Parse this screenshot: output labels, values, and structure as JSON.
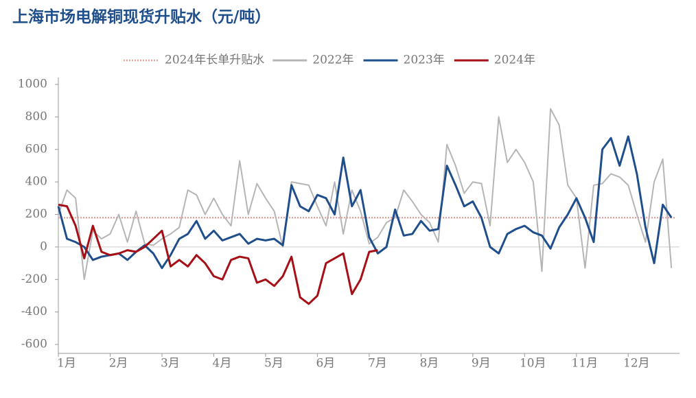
{
  "chart_data": {
    "type": "line",
    "title": "上海市场电解铜现货升贴水（元/吨）",
    "reference_line": {
      "name": "2024年长单升贴水",
      "value": 180,
      "color": "#e9a3a3"
    },
    "categories": [
      "1月",
      null,
      null,
      null,
      null,
      null,
      "2月",
      null,
      null,
      null,
      null,
      null,
      "3月",
      null,
      null,
      null,
      null,
      null,
      "4月",
      null,
      null,
      null,
      null,
      null,
      "5月",
      null,
      null,
      null,
      null,
      null,
      "6月",
      null,
      null,
      null,
      null,
      null,
      "7月",
      null,
      null,
      null,
      null,
      null,
      "8月",
      null,
      null,
      null,
      null,
      null,
      "9月",
      null,
      null,
      null,
      null,
      null,
      "10月",
      null,
      null,
      null,
      null,
      null,
      "11月",
      null,
      null,
      null,
      null,
      null,
      "12月",
      null,
      null,
      null,
      null,
      null
    ],
    "series": [
      {
        "name": "2022年",
        "color": "#b5b5b5",
        "values": [
          200,
          350,
          300,
          -200,
          100,
          50,
          80,
          200,
          30,
          220,
          20,
          10,
          50,
          80,
          120,
          350,
          320,
          200,
          300,
          200,
          130,
          530,
          200,
          390,
          300,
          220,
          0,
          400,
          390,
          380,
          250,
          130,
          400,
          80,
          350,
          220,
          20,
          60,
          150,
          180,
          350,
          280,
          200,
          150,
          30,
          630,
          500,
          330,
          400,
          390,
          130,
          800,
          520,
          600,
          520,
          400,
          -150,
          850,
          750,
          380,
          300,
          -130,
          380,
          390,
          450,
          430,
          380,
          200,
          30,
          400,
          540,
          -130
        ]
      },
      {
        "name": "2023年",
        "color": "#1f4e8c",
        "values": [
          250,
          50,
          30,
          0,
          -80,
          -60,
          -50,
          -40,
          -80,
          -30,
          10,
          -40,
          -130,
          -50,
          50,
          80,
          160,
          50,
          100,
          40,
          60,
          80,
          20,
          50,
          40,
          50,
          10,
          380,
          250,
          220,
          320,
          300,
          200,
          550,
          250,
          350,
          60,
          -40,
          0,
          230,
          70,
          80,
          160,
          100,
          110,
          500,
          380,
          250,
          280,
          180,
          0,
          -40,
          80,
          110,
          130,
          90,
          70,
          -10,
          120,
          200,
          300,
          180,
          30,
          600,
          670,
          500,
          680,
          450,
          120,
          -100,
          260,
          180
        ]
      },
      {
        "name": "2024年",
        "color": "#a50f15",
        "values": [
          260,
          250,
          130,
          -70,
          130,
          -30,
          -50,
          -40,
          -20,
          -30,
          0,
          50,
          100,
          -120,
          -80,
          -120,
          -50,
          -100,
          -180,
          -200,
          -80,
          -60,
          -70,
          -220,
          -200,
          -240,
          -180,
          -60,
          -310,
          -350,
          -300,
          -100,
          -70,
          -40,
          -290,
          -200,
          -30,
          -20,
          null,
          null,
          null,
          null,
          null,
          null,
          null,
          null,
          null,
          null,
          null,
          null,
          null,
          null,
          null,
          null,
          null,
          null,
          null,
          null,
          null,
          null,
          null,
          null,
          null,
          null,
          null,
          null,
          null,
          null,
          null,
          null,
          null,
          null
        ]
      }
    ],
    "ylim": [
      -600,
      1000
    ],
    "yticks": [
      -600,
      -400,
      -200,
      0,
      200,
      400,
      600,
      800,
      1000
    ],
    "grid": false,
    "legend": "top"
  }
}
